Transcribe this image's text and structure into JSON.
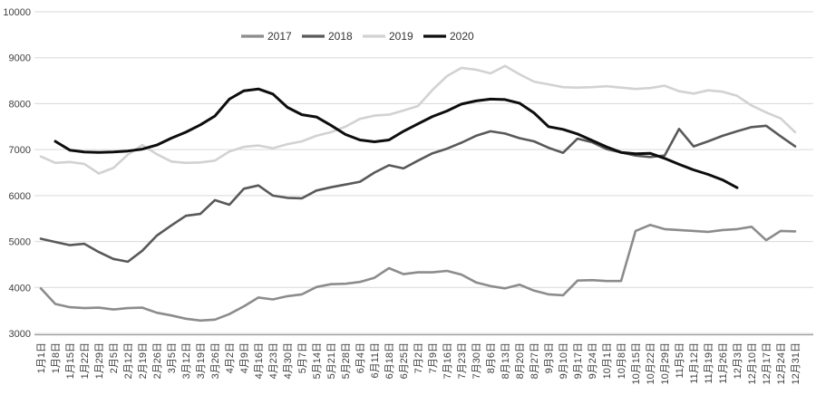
{
  "chart_data": {
    "type": "line",
    "title": "",
    "xlabel": "",
    "ylabel": "",
    "ylim": [
      3000,
      10000
    ],
    "ytick_step": 1000,
    "yticks": [
      3000,
      4000,
      5000,
      6000,
      7000,
      8000,
      9000,
      10000
    ],
    "grid": "horizontal",
    "legend_position": "top-center",
    "gridline_color": "#d9d9d9",
    "axis_line_color": "#9a9a9a",
    "tick_label_color": "#404040",
    "background_color": "#ffffff",
    "categories": [
      "1月1日",
      "1月8日",
      "1月15日",
      "1月22日",
      "1月29日",
      "2月5日",
      "2月12日",
      "2月19日",
      "2月26日",
      "3月5日",
      "3月12日",
      "3月19日",
      "3月26日",
      "4月2日",
      "4月9日",
      "4月16日",
      "4月23日",
      "4月30日",
      "5月7日",
      "5月14日",
      "5月21日",
      "5月28日",
      "6月4日",
      "6月11日",
      "6月18日",
      "6月25日",
      "7月2日",
      "7月9日",
      "7月16日",
      "7月23日",
      "7月30日",
      "8月6日",
      "8月13日",
      "8月20日",
      "8月27日",
      "9月3日",
      "9月10日",
      "9月17日",
      "9月24日",
      "10月1日",
      "10月8日",
      "10月15日",
      "10月22日",
      "10月29日",
      "11月5日",
      "11月12日",
      "11月19日",
      "11月26日",
      "12月3日",
      "12月10日",
      "12月17日",
      "12月24日",
      "12月31日"
    ],
    "series": [
      {
        "name": "2017",
        "color": "#8c8c8c",
        "stroke_width": 2.6,
        "start_index": 0,
        "values": [
          3980,
          3640,
          3570,
          3550,
          3560,
          3520,
          3550,
          3560,
          3450,
          3390,
          3320,
          3280,
          3300,
          3420,
          3590,
          3780,
          3740,
          3810,
          3850,
          4010,
          4070,
          4080,
          4120,
          4210,
          4420,
          4290,
          4330,
          4330,
          4360,
          4280,
          4110,
          4030,
          3980,
          4060,
          3930,
          3850,
          3830,
          4150,
          4160,
          4140,
          4140,
          5230,
          5360,
          5270,
          5250,
          5230,
          5210,
          5250,
          5270,
          5320,
          5030,
          5230,
          5220
        ]
      },
      {
        "name": "2018",
        "color": "#595959",
        "stroke_width": 2.6,
        "start_index": 0,
        "values": [
          5060,
          4990,
          4920,
          4950,
          4770,
          4620,
          4560,
          4800,
          5130,
          5350,
          5560,
          5600,
          5900,
          5800,
          6150,
          6220,
          6000,
          5950,
          5940,
          6110,
          6180,
          6240,
          6300,
          6500,
          6660,
          6590,
          6760,
          6920,
          7020,
          7150,
          7300,
          7400,
          7350,
          7250,
          7180,
          7040,
          6930,
          7240,
          7160,
          7010,
          6940,
          6870,
          6840,
          6870,
          7450,
          7070,
          7180,
          7300,
          7400,
          7490,
          7520,
          7290,
          7070
        ]
      },
      {
        "name": "2019",
        "color": "#d2d2d2",
        "stroke_width": 2.6,
        "start_index": 0,
        "values": [
          6850,
          6710,
          6730,
          6690,
          6480,
          6600,
          6890,
          7100,
          6900,
          6740,
          6710,
          6720,
          6760,
          6960,
          7060,
          7090,
          7030,
          7120,
          7180,
          7300,
          7380,
          7500,
          7670,
          7740,
          7760,
          7850,
          7950,
          8300,
          8600,
          8780,
          8740,
          8660,
          8820,
          8640,
          8480,
          8420,
          8360,
          8350,
          8360,
          8380,
          8350,
          8320,
          8340,
          8390,
          8270,
          8220,
          8290,
          8260,
          8170,
          7960,
          7810,
          7680,
          7380
        ]
      },
      {
        "name": "2020",
        "color": "#0d0d0d",
        "stroke_width": 3,
        "start_index": 1,
        "values": [
          7180,
          6990,
          6950,
          6940,
          6950,
          6970,
          7010,
          7100,
          7250,
          7380,
          7540,
          7730,
          8100,
          8280,
          8320,
          8210,
          7920,
          7760,
          7710,
          7530,
          7330,
          7210,
          7170,
          7210,
          7400,
          7560,
          7720,
          7840,
          7990,
          8060,
          8100,
          8090,
          8010,
          7800,
          7500,
          7440,
          7340,
          7200,
          7060,
          6940,
          6910,
          6920,
          6810,
          6680,
          6560,
          6460,
          6340,
          6170
        ]
      }
    ],
    "legend": {
      "items": [
        {
          "label": "2017",
          "color": "#8c8c8c"
        },
        {
          "label": "2018",
          "color": "#595959"
        },
        {
          "label": "2019",
          "color": "#d2d2d2"
        },
        {
          "label": "2020",
          "color": "#0d0d0d"
        }
      ]
    }
  }
}
